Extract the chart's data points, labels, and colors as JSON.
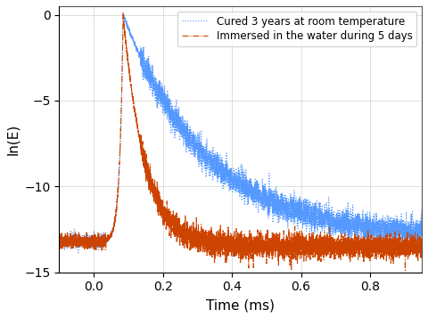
{
  "title": "",
  "xlabel": "Time (ms)",
  "ylabel": "ln(E)",
  "xlim": [
    -0.1,
    0.95
  ],
  "ylim": [
    -15,
    0.5
  ],
  "yticks": [
    0,
    -5,
    -10,
    -15
  ],
  "xticks": [
    0,
    0.2,
    0.4,
    0.6,
    0.8
  ],
  "legend1": "Cured 3 years at room temperature",
  "legend2": "Immersed in the water during 5 days",
  "color1": "#5599FF",
  "color2": "#CC4400",
  "background": "#FFFFFF",
  "seed": 42,
  "pre_peak_base": -13.2,
  "peak_time": 0.085,
  "decay_rate1": 4.2,
  "decay_rate2": 16.0,
  "post_base1": -13.0,
  "post_base2": -13.5,
  "rise_steepness": 100.0
}
